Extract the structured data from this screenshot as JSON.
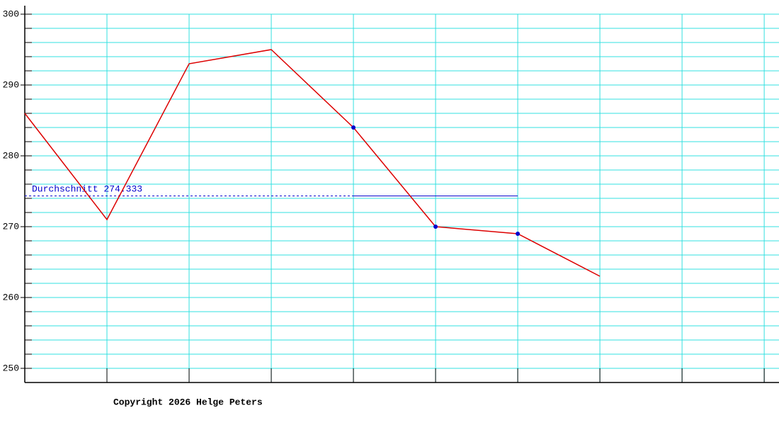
{
  "chart_data": {
    "type": "line",
    "x": [
      0,
      1,
      2,
      3,
      4,
      5,
      6,
      7
    ],
    "series": [
      {
        "color": "#dd0000",
        "values": [
          286,
          271,
          293,
          295,
          284,
          270,
          269,
          263
        ]
      }
    ],
    "marker_indices": [
      4,
      5,
      6
    ],
    "marker_color": "#0000cc",
    "average_label": "Durchschnitt",
    "average": 274.333,
    "average_color": "#0000cc",
    "average_segments": [
      {
        "from": 0,
        "to": 4,
        "style": "dashed"
      },
      {
        "from": 4,
        "to": 6,
        "style": "solid"
      }
    ],
    "xlim": [
      0,
      9.18
    ],
    "xticks": [
      0,
      1,
      2,
      3,
      4,
      5,
      6,
      7,
      8,
      9
    ],
    "ylim": [
      248,
      301.2
    ],
    "yticks": [
      250,
      260,
      270,
      280,
      290,
      300
    ],
    "minor_yticks": [
      250,
      252,
      254,
      256,
      258,
      260,
      262,
      264,
      266,
      268,
      270,
      272,
      274,
      276,
      278,
      280,
      282,
      284,
      286,
      288,
      290,
      292,
      294,
      296,
      298,
      300
    ],
    "grid": true,
    "grid_color": "#33e0e0",
    "footer": "Copyright 2026 Helge Peters"
  }
}
